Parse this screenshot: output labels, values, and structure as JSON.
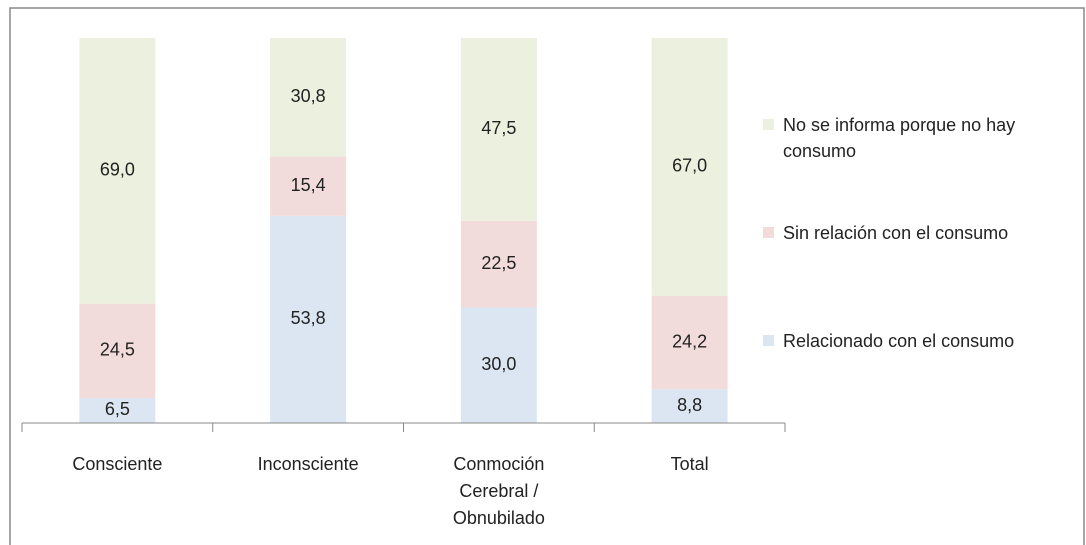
{
  "chart_data": {
    "type": "stacked_bar",
    "categories": [
      "Consciente",
      "Inconsciente",
      "Conmoción Cerebral / Obnubilado",
      "Total"
    ],
    "ylim": [
      0,
      100
    ],
    "legend": "right",
    "series": [
      {
        "name": "Relacionado con el consumo",
        "color": "#dce6f2",
        "values": [
          6.5,
          53.8,
          30.0,
          8.8
        ],
        "value_labels": [
          "6,5",
          "53,8",
          "30,0",
          "8,8"
        ]
      },
      {
        "name": "Sin relación con el consumo",
        "color": "#f2dcdb",
        "values": [
          24.5,
          15.4,
          22.5,
          24.2
        ],
        "value_labels": [
          "24,5",
          "15,4",
          "22,5",
          "24,2"
        ]
      },
      {
        "name": "No se informa porque no hay consumo",
        "color": "#ebf1de",
        "values": [
          69.0,
          30.8,
          47.5,
          67.0
        ],
        "value_labels": [
          "69,0",
          "30,8",
          "47,5",
          "67,0"
        ]
      }
    ]
  }
}
